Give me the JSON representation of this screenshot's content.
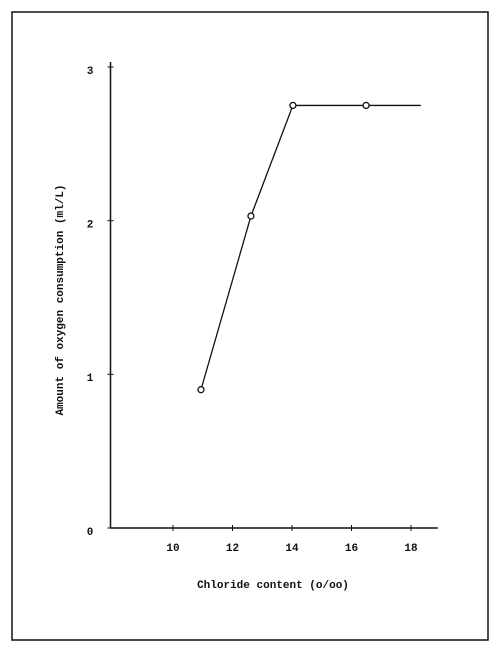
{
  "chart_data": {
    "type": "line",
    "x_label": "Chloride content (o/oo)",
    "y_label": "Amount of oxygen consumption (ml/L)",
    "xlim": [
      7.9,
      18.9
    ],
    "xticks": [
      10,
      12,
      14,
      16,
      18
    ],
    "ylim": [
      0,
      3
    ],
    "yticks": [
      0,
      1,
      2,
      3
    ],
    "grid": false,
    "series": [
      {
        "color": "#111111",
        "marker": false,
        "x": [
          10.94,
          12.62,
          14.03,
          18.33
        ],
        "values": [
          0.9,
          2.03,
          2.75,
          2.75
        ]
      },
      {
        "color": "#111111",
        "marker": true,
        "line": false,
        "x": [
          10.94,
          12.62,
          14.03,
          16.49
        ],
        "values": [
          0.9,
          2.03,
          2.75,
          2.75
        ]
      }
    ]
  }
}
